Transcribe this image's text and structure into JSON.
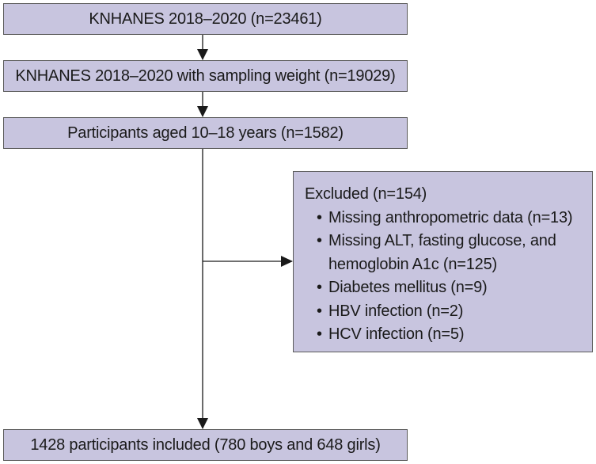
{
  "flow": {
    "step1": "KNHANES 2018–2020 (n=23461)",
    "step2": "KNHANES 2018–2020 with sampling weight (n=19029)",
    "step3": "Participants aged 10–18 years (n=1582)",
    "excluded": {
      "title": "Excluded (n=154)",
      "items": [
        {
          "line1": "Missing anthropometric data (n=13)"
        },
        {
          "line1": "Missing ALT, fasting glucose, and",
          "line2": "hemoglobin A1c (n=125)"
        },
        {
          "line1": "Diabetes mellitus (n=9)"
        },
        {
          "line1": "HBV infection (n=2)"
        },
        {
          "line1": "HCV infection (n=5)"
        }
      ]
    },
    "final": "1428 participants included (780 boys and 648 girls)"
  },
  "colors": {
    "box_fill": "#c8c5df",
    "box_border": "#5a5a5a",
    "line": "#1a1a1a"
  }
}
